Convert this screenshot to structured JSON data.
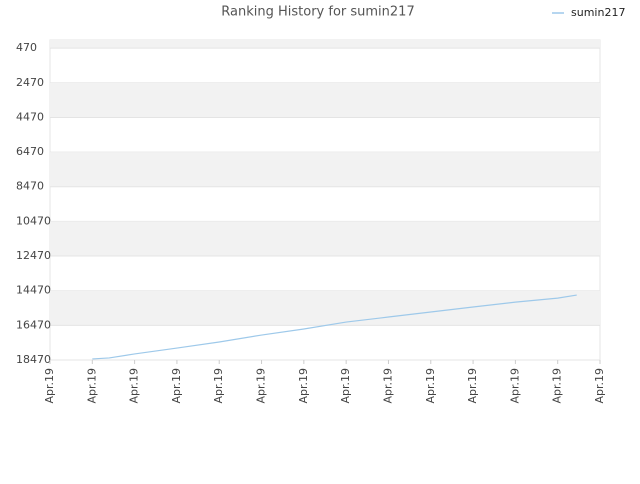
{
  "chart_data": {
    "type": "line",
    "title": "Ranking History for sumin217",
    "x": [
      1,
      1.4,
      2,
      3,
      4,
      5,
      6,
      7,
      8,
      9,
      10,
      11,
      12,
      12.45
    ],
    "series": [
      {
        "name": "sumin217",
        "color": "#9ec9ea",
        "values": [
          18410,
          18350,
          18120,
          17780,
          17430,
          17030,
          16680,
          16280,
          15990,
          15700,
          15410,
          15130,
          14900,
          14720
        ]
      }
    ],
    "xlim": [
      0,
      13
    ],
    "xticks": [
      {
        "value": 0,
        "label": "Apr.19"
      },
      {
        "value": 1,
        "label": "Apr.19"
      },
      {
        "value": 2,
        "label": "Apr.19"
      },
      {
        "value": 3,
        "label": "Apr.19"
      },
      {
        "value": 4,
        "label": "Apr.19"
      },
      {
        "value": 5,
        "label": "Apr.19"
      },
      {
        "value": 6,
        "label": "Apr.19"
      },
      {
        "value": 7,
        "label": "Apr.19"
      },
      {
        "value": 8,
        "label": "Apr.19"
      },
      {
        "value": 9,
        "label": "Apr.19"
      },
      {
        "value": 10,
        "label": "Apr.19"
      },
      {
        "value": 11,
        "label": "Apr.19"
      },
      {
        "value": 12,
        "label": "Apr.19"
      },
      {
        "value": 13,
        "label": "Apr.19"
      }
    ],
    "ylim": [
      0,
      18470
    ],
    "y_inverted": true,
    "yticks": [
      470,
      2470,
      4470,
      6470,
      8470,
      10470,
      12470,
      14470,
      16470,
      18470
    ],
    "banded_grid": true,
    "legend_position": "top-right"
  }
}
